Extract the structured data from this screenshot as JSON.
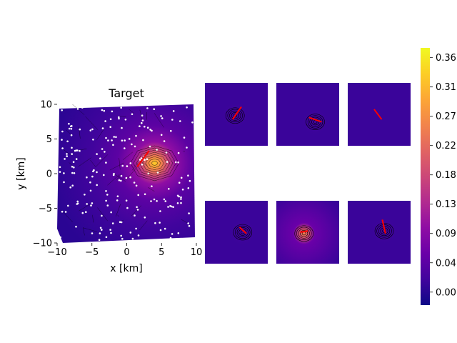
{
  "chart_data": [
    {
      "type": "heatmap",
      "title": "Target",
      "xlabel": "x [km]",
      "ylabel": "y [km]",
      "xlim": [
        -10,
        10
      ],
      "ylim": [
        -10,
        10
      ],
      "xticks": [
        -10,
        -5,
        0,
        5,
        10
      ],
      "yticks": [
        -10,
        -5,
        0,
        5,
        10
      ],
      "colormap": "plasma",
      "peak": {
        "x": 4.0,
        "y": 1.5,
        "value": 0.37
      },
      "arrow": {
        "x1": 1.5,
        "y1": 1.0,
        "x2": 3.2,
        "y2": 3.3,
        "color": "#ff0000"
      },
      "stations_color": "#ffffff"
    },
    {
      "type": "heatmap",
      "panels": [
        {
          "name": "top-1",
          "peak": [
            0.48,
            0.52
          ],
          "arrow": [
            [
              0.44,
              0.58
            ],
            [
              0.58,
              0.38
            ]
          ]
        },
        {
          "name": "top-2",
          "peak": [
            0.62,
            0.62
          ],
          "arrow": [
            [
              0.52,
              0.55
            ],
            [
              0.72,
              0.62
            ]
          ]
        },
        {
          "name": "top-3",
          "peak": null,
          "arrow": [
            [
              0.42,
              0.42
            ],
            [
              0.54,
              0.58
            ]
          ]
        },
        {
          "name": "bottom-1",
          "peak": [
            0.6,
            0.5
          ],
          "arrow": [
            [
              0.55,
              0.42
            ],
            [
              0.66,
              0.52
            ]
          ]
        },
        {
          "name": "bottom-2",
          "peak": [
            0.44,
            0.52
          ],
          "arrow": [
            [
              0.38,
              0.5
            ],
            [
              0.5,
              0.48
            ]
          ]
        },
        {
          "name": "bottom-3",
          "peak": [
            0.58,
            0.48
          ],
          "arrow": [
            [
              0.55,
              0.3
            ],
            [
              0.6,
              0.52
            ]
          ]
        }
      ]
    },
    {
      "type": "colorbar",
      "colormap": "plasma",
      "range": [
        -0.02,
        0.375
      ],
      "tick_values": [
        0.0,
        0.045,
        0.09,
        0.135,
        0.18,
        0.225,
        0.27,
        0.315,
        0.36
      ],
      "tick_labels": [
        "0.00",
        "0.04",
        "0.09",
        "0.13",
        "0.18",
        "0.22",
        "0.27",
        "0.31",
        "0.36"
      ]
    }
  ],
  "colors": {
    "plasma": [
      "#0d0887",
      "#41049d",
      "#6a00a8",
      "#8f0da4",
      "#b12a90",
      "#cc4778",
      "#e16462",
      "#f2844b",
      "#fca636",
      "#fcce25",
      "#f0f921"
    ],
    "arrow": "#ff0000",
    "contour": "#000000"
  }
}
